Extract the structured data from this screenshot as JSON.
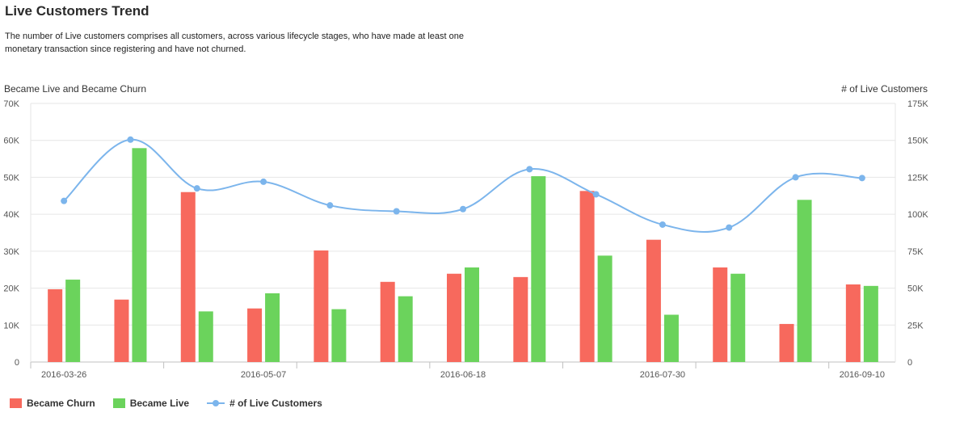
{
  "header": {
    "title": "Live Customers Trend",
    "description": "The number of Live customers comprises all customers, across various lifecycle stages, who have made at least one monetary transaction since registering and have not churned."
  },
  "chart_data": {
    "type": "bar",
    "ylabel_left": "Became Live and Became Churn",
    "ylabel_right": "# of Live Customers",
    "ylim_left": [
      0,
      70000
    ],
    "ylim_right": [
      0,
      175000
    ],
    "yticks_left": [
      "0",
      "10K",
      "20K",
      "30K",
      "40K",
      "50K",
      "60K",
      "70K"
    ],
    "yticks_right": [
      "0",
      "25K",
      "50K",
      "75K",
      "100K",
      "125K",
      "150K",
      "175K"
    ],
    "x_tick_labels": [
      {
        "index": 0,
        "label": "2016-03-26"
      },
      {
        "index": 3,
        "label": "2016-05-07"
      },
      {
        "index": 6,
        "label": "2016-06-18"
      },
      {
        "index": 9,
        "label": "2016-07-30"
      },
      {
        "index": 12,
        "label": "2016-09-10"
      }
    ],
    "categories": [
      "2016-03-26",
      "",
      "",
      "2016-05-07",
      "",
      "",
      "2016-06-18",
      "",
      "",
      "2016-07-30",
      "",
      "",
      "2016-09-10"
    ],
    "grid": true,
    "legend_position": "bottom-left",
    "series": [
      {
        "name": "Became Churn",
        "type": "bar",
        "axis": "left",
        "color": "#f7695d",
        "values": [
          19700,
          16900,
          46000,
          14500,
          30200,
          21700,
          23900,
          23000,
          46300,
          33100,
          25600,
          10300,
          21000
        ]
      },
      {
        "name": "Became Live",
        "type": "bar",
        "axis": "left",
        "color": "#6bd35c",
        "values": [
          22300,
          57900,
          13700,
          18600,
          14300,
          17800,
          25600,
          50300,
          28800,
          12800,
          23900,
          43900,
          20600
        ]
      },
      {
        "name": "# of Live Customers",
        "type": "line",
        "axis": "right",
        "color": "#7cb5ec",
        "values": [
          109000,
          150500,
          117500,
          122000,
          106000,
          102000,
          103500,
          130500,
          113500,
          93000,
          91000,
          125000,
          124500
        ]
      }
    ]
  },
  "legend": {
    "churn": "Became Churn",
    "live": "Became Live",
    "customers": "# of Live Customers"
  }
}
